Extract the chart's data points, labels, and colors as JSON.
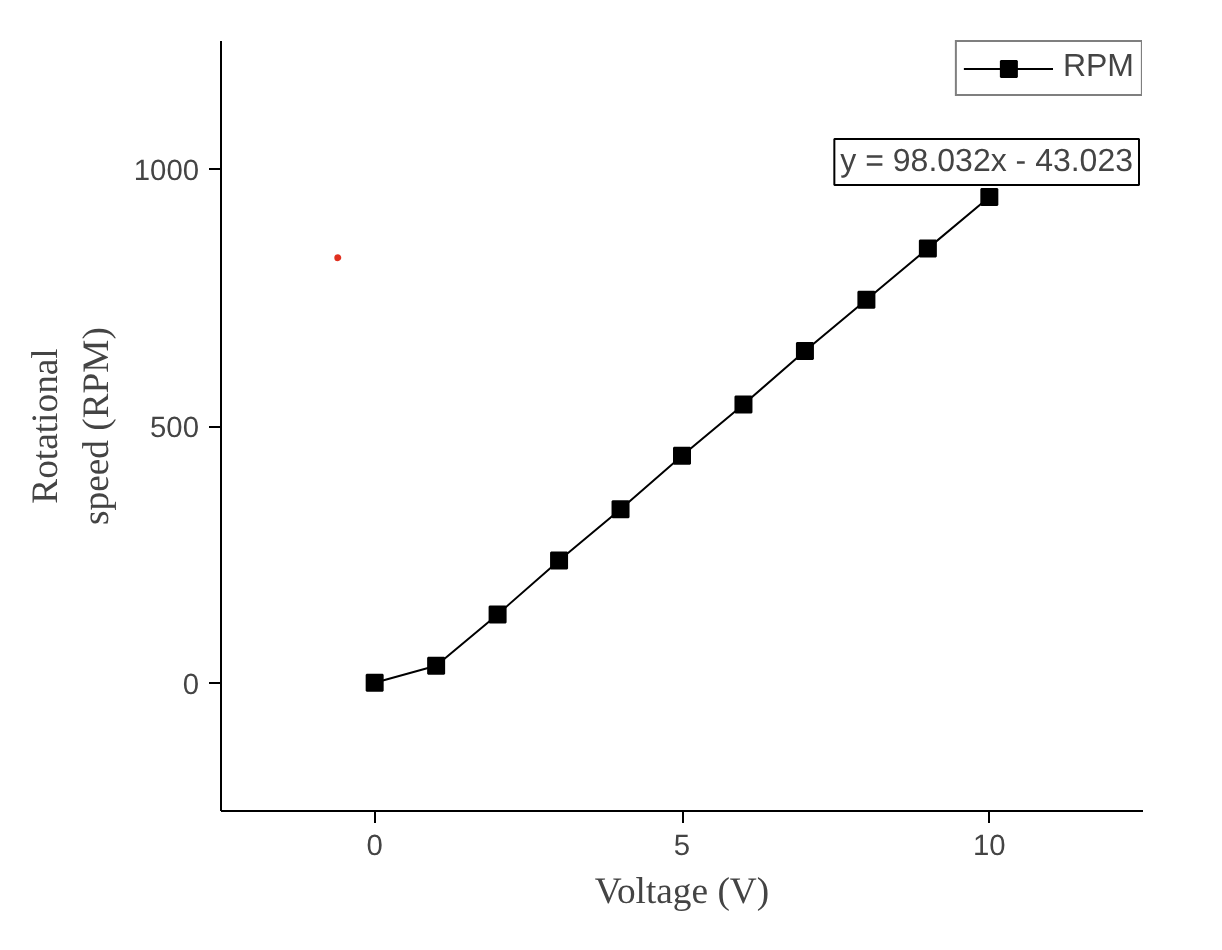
{
  "chart_data": {
    "type": "line",
    "xlabel": "Voltage (V)",
    "ylabel": "Rotational\nspeed (RPM)",
    "x": [
      0,
      1,
      2,
      3,
      4,
      5,
      6,
      7,
      8,
      9,
      10
    ],
    "series": [
      {
        "name": "RPM",
        "color": "#000000",
        "values": [
          0,
          33,
          133,
          238,
          338,
          442,
          542,
          646,
          746,
          846,
          946
        ],
        "marker": "square"
      },
      {
        "type": "scatter",
        "color": "#e03020",
        "x": [
          -0.6
        ],
        "values": [
          828
        ],
        "marker": "circle"
      }
    ],
    "xlim": [
      -2.5,
      12.5
    ],
    "xticks": [
      0,
      5,
      10
    ],
    "ylim": [
      -250,
      1250
    ],
    "yticks": [
      0,
      500,
      1000
    ],
    "annotations": [
      "y = 98.032x - 43.023"
    ],
    "legend": "top right",
    "grid": false,
    "line_style": "solid"
  }
}
